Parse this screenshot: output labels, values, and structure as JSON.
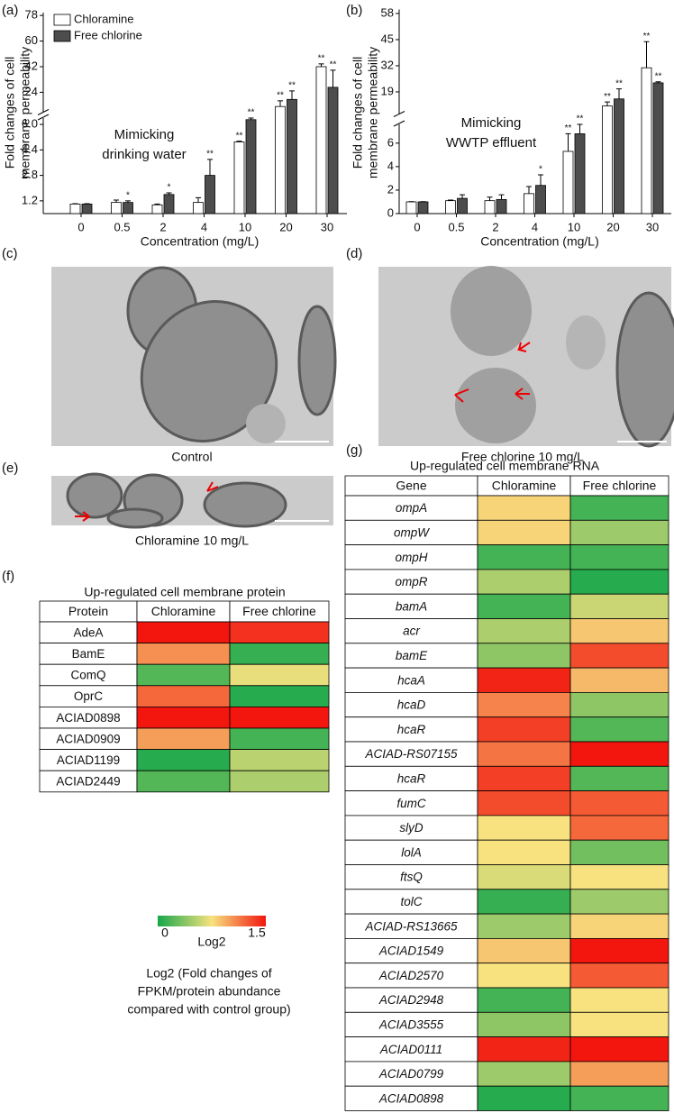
{
  "chart_data": [
    {
      "type": "bar",
      "panel_label": "(a)",
      "ylabel": [
        "Fold changes of cell",
        "membrane permeability"
      ],
      "xlabel": "Concentration (mg/L)",
      "annotation": [
        "Mimicking",
        "drinking water"
      ],
      "categories": [
        "0",
        "0.5",
        "2",
        "4",
        "10",
        "20",
        "30"
      ],
      "series": [
        {
          "name": "Chloramine",
          "color": "#ffffff",
          "values": [
            1.0,
            1.1,
            0.95,
            1.1,
            4.9,
            14,
            42
          ],
          "errors": [
            0.02,
            0.15,
            0.05,
            0.3,
            0.05,
            4,
            2
          ],
          "significance": [
            null,
            null,
            null,
            null,
            "**",
            "**",
            "**"
          ]
        },
        {
          "name": "Free chlorine",
          "color": "#4d4d4d",
          "values": [
            1.0,
            1.1,
            1.6,
            2.8,
            6.3,
            19,
            27.5
          ],
          "errors": [
            0.02,
            0.1,
            0.1,
            1.0,
            0.1,
            6,
            12
          ],
          "significance": [
            null,
            "*",
            "*",
            "**",
            "**",
            "**",
            "**"
          ]
        }
      ],
      "ylim": [
        0.4,
        80
      ],
      "ybreak": [
        6.4,
        10
      ],
      "yticks": [
        1.2,
        2.8,
        4.4,
        {
          "value": 6,
          "label": "6.0"
        },
        24,
        42,
        60,
        78
      ],
      "legend": "top-left"
    },
    {
      "type": "bar",
      "panel_label": "(b)",
      "ylabel": [
        "Fold changes of cell",
        "membrane permeability"
      ],
      "xlabel": "Concentration (mg/L)",
      "annotation": [
        "Mimicking",
        "WWTP effluent"
      ],
      "categories": [
        "0",
        "0.5",
        "2",
        "4",
        "10",
        "20",
        "30"
      ],
      "series": [
        {
          "color": "#ffffff",
          "values": [
            1.0,
            1.1,
            1.1,
            1.7,
            5.3,
            12,
            31
          ],
          "errors": [
            0.02,
            0.05,
            0.3,
            0.6,
            1.5,
            2,
            13
          ],
          "significance": [
            null,
            null,
            null,
            null,
            "**",
            "**",
            "**"
          ]
        },
        {
          "color": "#4d4d4d",
          "values": [
            1.0,
            1.3,
            1.2,
            2.4,
            6.8,
            15.5,
            23.5
          ],
          "errors": [
            0.02,
            0.3,
            0.4,
            0.9,
            0.8,
            5,
            0.5
          ],
          "significance": [
            null,
            null,
            null,
            "*",
            "**",
            "**",
            "**"
          ]
        }
      ],
      "ylim": [
        0,
        60
      ],
      "ybreak": [
        7.6,
        8
      ],
      "yticks": [
        0,
        2,
        4,
        6,
        19,
        32,
        45,
        58
      ]
    }
  ],
  "micrographs": [
    {
      "label": "(c)",
      "caption": "Control"
    },
    {
      "label": "(d)",
      "caption": "Free chlorine 10 mg/L"
    },
    {
      "label": "(e)",
      "caption": "Chloramine 10 mg/L"
    }
  ],
  "heatmaps": {
    "color_scale": {
      "min": 0,
      "max": 1.5,
      "ticks": [
        0,
        1.5
      ],
      "colors": [
        "#17a74a",
        "#f7e27f",
        "#f2160f"
      ],
      "label": "Log2",
      "caption": [
        "Log2 (Fold changes of",
        "FPKM/protein abundance",
        "compared with control group)"
      ]
    },
    "protein": {
      "panel_label": "(f)",
      "title": "Up-regulated cell membrane protein",
      "header": [
        "Protein",
        "Chloramine",
        "Free chlorine"
      ],
      "rows": [
        {
          "name": "AdeA",
          "values": [
            1.5,
            1.4
          ]
        },
        {
          "name": "BamE",
          "values": [
            1.05,
            0.1
          ]
        },
        {
          "name": "ComQ",
          "values": [
            0.2,
            0.7
          ]
        },
        {
          "name": "OprC",
          "values": [
            1.2,
            0.05
          ]
        },
        {
          "name": "ACIAD0898",
          "values": [
            1.5,
            1.5
          ]
        },
        {
          "name": "ACIAD0909",
          "values": [
            1.0,
            0.15
          ]
        },
        {
          "name": "ACIAD1199",
          "values": [
            0.05,
            0.55
          ]
        },
        {
          "name": "ACIAD2449",
          "values": [
            0.2,
            0.5
          ]
        }
      ]
    },
    "rna": {
      "panel_label": "(g)",
      "title": "Up-regulated cell membrane RNA",
      "header": [
        "Gene",
        "Chloramine",
        "Free chlorine"
      ],
      "rows": [
        {
          "name": "ompA",
          "values": [
            0.8,
            0.15
          ]
        },
        {
          "name": "ompW",
          "values": [
            0.8,
            0.45
          ]
        },
        {
          "name": "ompH",
          "values": [
            0.15,
            0.15
          ]
        },
        {
          "name": "ompR",
          "values": [
            0.5,
            0.05
          ]
        },
        {
          "name": "bamA",
          "values": [
            0.15,
            0.6
          ]
        },
        {
          "name": "acr",
          "values": [
            0.5,
            0.85
          ]
        },
        {
          "name": "bamE",
          "values": [
            0.4,
            1.3
          ]
        },
        {
          "name": "hcaA",
          "values": [
            1.45,
            0.9
          ]
        },
        {
          "name": "hcaD",
          "values": [
            1.1,
            0.4
          ]
        },
        {
          "name": "hcaR",
          "values": [
            1.35,
            0.2
          ]
        },
        {
          "name": "ACIAD-RS07155",
          "values": [
            1.15,
            1.5
          ]
        },
        {
          "name": "hcaR",
          "values": [
            1.35,
            0.2
          ]
        },
        {
          "name": "fumC",
          "values": [
            1.3,
            1.25
          ]
        },
        {
          "name": "slyD",
          "values": [
            0.75,
            1.2
          ]
        },
        {
          "name": "lolA",
          "values": [
            0.75,
            0.3
          ]
        },
        {
          "name": "ftsQ",
          "values": [
            0.65,
            0.75
          ]
        },
        {
          "name": "tolC",
          "values": [
            0.1,
            0.45
          ]
        },
        {
          "name": "ACIAD-RS13665",
          "values": [
            0.45,
            0.8
          ]
        },
        {
          "name": "ACIAD1549",
          "values": [
            0.85,
            1.5
          ]
        },
        {
          "name": "ACIAD2570",
          "values": [
            0.75,
            1.25
          ]
        },
        {
          "name": "ACIAD2948",
          "values": [
            0.15,
            0.75
          ]
        },
        {
          "name": "ACIAD3555",
          "values": [
            0.4,
            0.75
          ]
        },
        {
          "name": "ACIAD0111",
          "values": [
            1.45,
            1.5
          ]
        },
        {
          "name": "ACIAD0799",
          "values": [
            0.45,
            1.0
          ]
        },
        {
          "name": "ACIAD0898",
          "values": [
            0.05,
            0.15
          ]
        }
      ]
    }
  }
}
